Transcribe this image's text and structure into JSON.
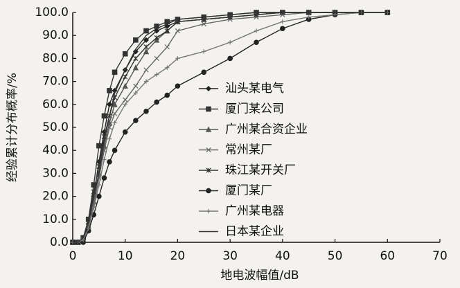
{
  "chart_data": {
    "type": "line",
    "x_label": "地电波幅值/dB",
    "y_label": "经验累计分布概率/%",
    "x": [
      0,
      1,
      2,
      3,
      4,
      5,
      6,
      7,
      8,
      10,
      12,
      14,
      16,
      18,
      20,
      25,
      30,
      35,
      40,
      45,
      50,
      55,
      60
    ],
    "xlim": [
      0,
      70
    ],
    "xticks": [
      0,
      10,
      20,
      30,
      40,
      50,
      60,
      70
    ],
    "ylim": [
      0,
      100
    ],
    "yticks": [
      {
        "value": 0,
        "label": "0.0"
      },
      {
        "value": 10,
        "label": "10.0"
      },
      {
        "value": 20,
        "label": "20.0"
      },
      {
        "value": 30,
        "label": "30.0"
      },
      {
        "value": 40,
        "label": "40.0"
      },
      {
        "value": 50,
        "label": "50.0"
      },
      {
        "value": 60,
        "label": "60.0"
      },
      {
        "value": 70,
        "label": "70.0"
      },
      {
        "value": 80,
        "label": "80.0"
      },
      {
        "value": 90,
        "label": "90.0"
      },
      {
        "value": 100,
        "label": "100.0"
      }
    ],
    "grid": false,
    "series": [
      {
        "name": "汕头某电气",
        "color": "#222222",
        "marker": "diamond",
        "values": [
          0,
          0,
          1,
          8,
          20,
          35,
          48,
          60,
          66,
          75,
          83,
          88,
          92,
          94,
          96,
          97,
          98,
          99,
          100,
          100,
          100,
          100,
          100
        ]
      },
      {
        "name": "厦门某公司",
        "color": "#333333",
        "marker": "square",
        "values": [
          0,
          0,
          2,
          10,
          25,
          42,
          55,
          66,
          74,
          82,
          88,
          92,
          94,
          96,
          97,
          98,
          99,
          100,
          100,
          100,
          100,
          100,
          100
        ]
      },
      {
        "name": "广州某合资企业",
        "color": "#555555",
        "marker": "triangle",
        "values": [
          0,
          0,
          1,
          7,
          18,
          30,
          42,
          52,
          60,
          68,
          76,
          83,
          88,
          92,
          96,
          97,
          98,
          99,
          100,
          100,
          100,
          100,
          100
        ]
      },
      {
        "name": "常州某厂",
        "color": "#666666",
        "marker": "x",
        "values": [
          0,
          0,
          1,
          6,
          16,
          28,
          40,
          50,
          56,
          62,
          68,
          75,
          80,
          85,
          92,
          95,
          97,
          98,
          99,
          100,
          100,
          100,
          100
        ]
      },
      {
        "name": "珠江某开关厂",
        "color": "#333333",
        "marker": "star",
        "values": [
          0,
          0,
          2,
          9,
          22,
          33,
          46,
          55,
          63,
          72,
          80,
          85,
          89,
          92,
          96,
          97,
          98,
          99,
          100,
          100,
          100,
          100,
          100
        ]
      },
      {
        "name": "厦门某厂",
        "color": "#222222",
        "marker": "circle",
        "values": [
          0,
          0,
          0,
          5,
          12,
          20,
          28,
          35,
          40,
          48,
          53,
          57,
          61,
          64,
          68,
          74,
          80,
          87,
          93,
          97,
          99,
          100,
          100
        ]
      },
      {
        "name": "广州某电器",
        "color": "#777777",
        "marker": "plus",
        "values": [
          0,
          0,
          1,
          6,
          15,
          25,
          36,
          45,
          52,
          60,
          65,
          70,
          73,
          76,
          80,
          83,
          87,
          92,
          96,
          98,
          99,
          100,
          100
        ]
      },
      {
        "name": "日本某企业",
        "color": "#333333",
        "marker": "none",
        "values": [
          0,
          0,
          2,
          9,
          20,
          30,
          44,
          55,
          65,
          75,
          84,
          90,
          93,
          95,
          97,
          98,
          99,
          100,
          100,
          100,
          100,
          100,
          100
        ]
      }
    ]
  }
}
